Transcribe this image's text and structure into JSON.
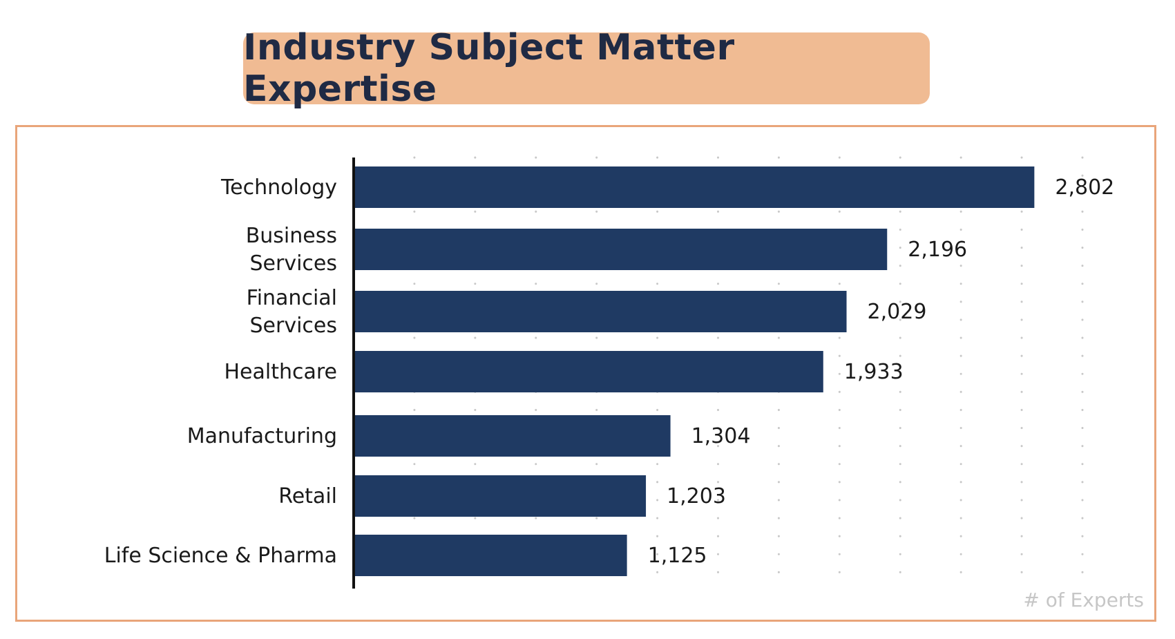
{
  "chart_data": {
    "type": "bar",
    "orientation": "horizontal",
    "title": "Industry Subject Matter Expertise",
    "categories": [
      [
        "Technology"
      ],
      [
        "Business",
        "Services"
      ],
      [
        "Financial",
        "Services"
      ],
      [
        "Healthcare"
      ],
      [
        "Manufacturing"
      ],
      [
        "Retail"
      ],
      [
        "Life Science & Pharma"
      ]
    ],
    "values": [
      2802,
      2196,
      2029,
      1933,
      1304,
      1203,
      1125
    ],
    "value_labels": [
      "2,802",
      "2,196",
      "2,029",
      "1,933",
      "1,304",
      "1,203",
      "1,125"
    ],
    "xlabel": "# of Experts",
    "xlim": [
      0,
      3000
    ],
    "grid": true,
    "colors": {
      "bar": "#1f3a63",
      "title_bg": "#f0bb93",
      "border": "#e9a57a",
      "grid": "#c8c8c8"
    }
  }
}
